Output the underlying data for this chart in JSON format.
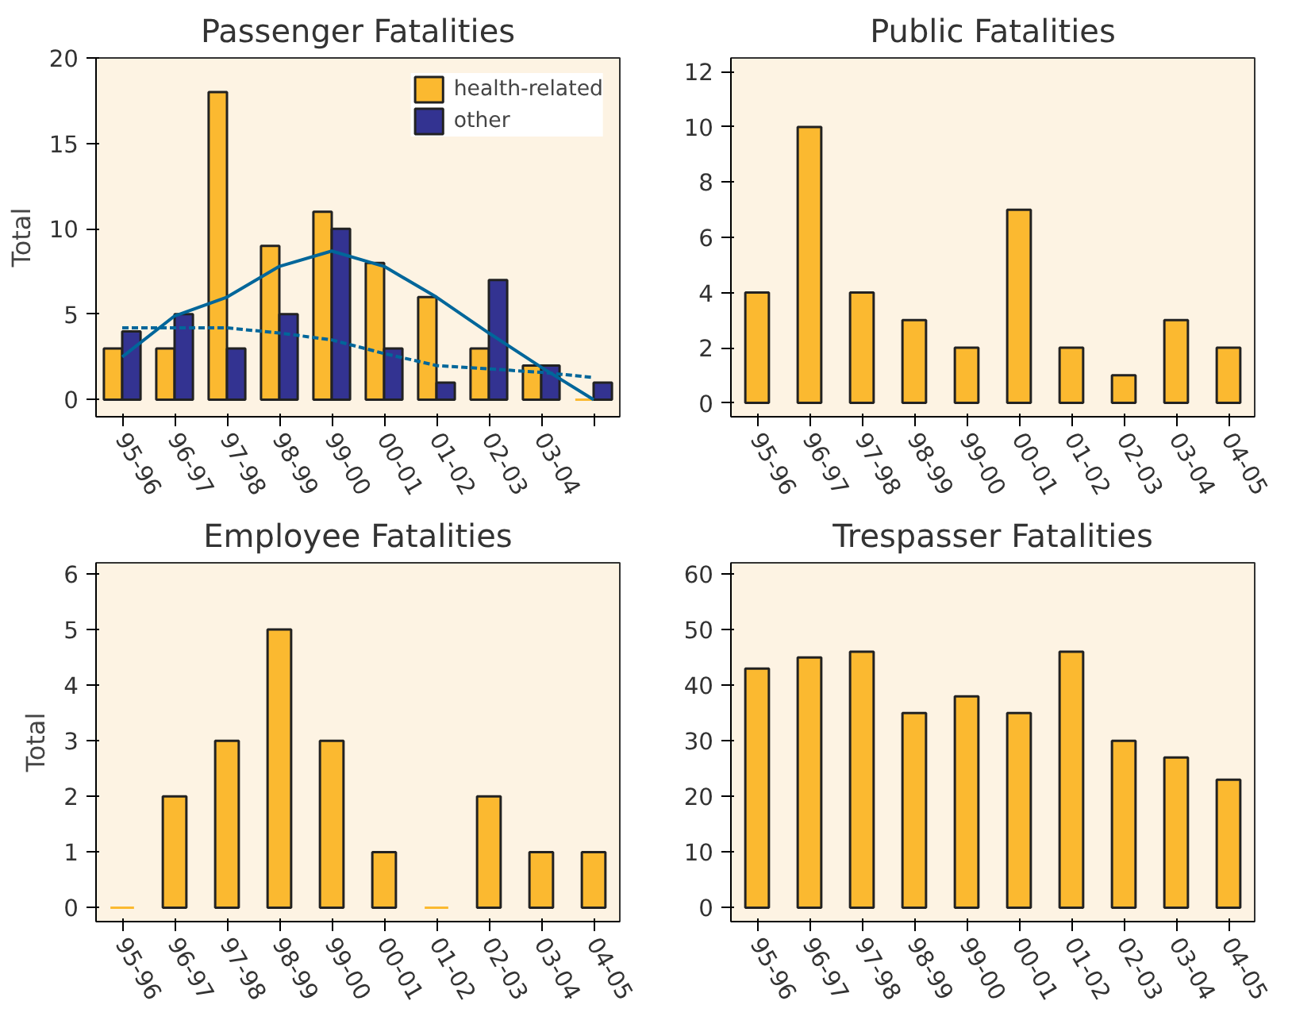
{
  "chart_data": [
    {
      "type": "bar",
      "title": "Passenger Fatalities",
      "ylabel": "Total",
      "categories": [
        "95-96",
        "96-97",
        "97-98",
        "98-99",
        "99-00",
        "00-01",
        "01-02",
        "02-03",
        "03-04",
        null
      ],
      "ylim": [
        -1,
        20
      ],
      "yticks": [
        0,
        5,
        10,
        15,
        20
      ],
      "grid": false,
      "legend": "top right",
      "series": [
        {
          "name": "health-related",
          "color": "#fbb930",
          "values": [
            3,
            3,
            18,
            9,
            11,
            8,
            6,
            3,
            2,
            0
          ]
        },
        {
          "name": "other",
          "color": "#333391",
          "values": [
            4,
            5,
            3,
            5,
            10,
            3,
            1,
            7,
            2,
            1
          ]
        },
        {
          "type": "line",
          "color": "#00669a",
          "line_style": "solid",
          "values": [
            2.5,
            4.9,
            6.0,
            7.8,
            8.7,
            7.8,
            6.0,
            3.9,
            1.9,
            0
          ]
        },
        {
          "type": "line",
          "color": "#00669a",
          "line_style": "dashed",
          "values": [
            4.2,
            4.2,
            4.2,
            3.9,
            3.5,
            2.7,
            2.0,
            1.8,
            1.6,
            1.3
          ]
        }
      ]
    },
    {
      "type": "bar",
      "title": "Public Fatalities",
      "categories": [
        "95-96",
        "96-97",
        "97-98",
        "98-99",
        "99-00",
        "00-01",
        "01-02",
        "02-03",
        "03-04",
        "04-05"
      ],
      "ylim": [
        -0.5,
        12.5
      ],
      "yticks": [
        0,
        2,
        4,
        6,
        8,
        10,
        12
      ],
      "grid": false,
      "series": [
        {
          "color": "#fbb930",
          "values": [
            4,
            10,
            4,
            3,
            2,
            7,
            2,
            1,
            3,
            2
          ]
        }
      ]
    },
    {
      "type": "bar",
      "title": "Employee Fatalities",
      "ylabel": "Total",
      "categories": [
        "95-96",
        "96-97",
        "97-98",
        "98-99",
        "99-00",
        "00-01",
        "01-02",
        "02-03",
        "03-04",
        "04-05"
      ],
      "ylim": [
        -0.25,
        6.2
      ],
      "yticks": [
        0,
        1,
        2,
        3,
        4,
        5,
        6
      ],
      "grid": false,
      "series": [
        {
          "color": "#fbb930",
          "values": [
            0,
            2,
            3,
            5,
            3,
            1,
            0,
            2,
            1,
            1
          ]
        }
      ]
    },
    {
      "type": "bar",
      "title": "Trespasser Fatalities",
      "categories": [
        "95-96",
        "96-97",
        "97-98",
        "98-99",
        "99-00",
        "00-01",
        "01-02",
        "02-03",
        "03-04",
        "04-05"
      ],
      "ylim": [
        -2.5,
        62
      ],
      "yticks": [
        0,
        10,
        20,
        30,
        40,
        50,
        60
      ],
      "grid": false,
      "series": [
        {
          "color": "#fbb930",
          "values": [
            43,
            45,
            46,
            35,
            38,
            35,
            46,
            30,
            27,
            23
          ]
        }
      ]
    }
  ]
}
